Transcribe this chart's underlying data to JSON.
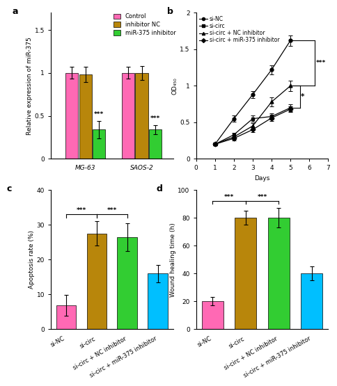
{
  "panel_a": {
    "groups": [
      "MG-63",
      "SAOS-2"
    ],
    "categories": [
      "Control",
      "inhibitor NC",
      "miR-375 inhibitor"
    ],
    "values": [
      [
        1.0,
        0.98,
        0.34
      ],
      [
        1.0,
        1.0,
        0.34
      ]
    ],
    "errors": [
      [
        0.07,
        0.09,
        0.1
      ],
      [
        0.07,
        0.08,
        0.05
      ]
    ],
    "colors": [
      "#FF69B4",
      "#B8860B",
      "#32CD32"
    ],
    "ylabel": "Relative expression of miR-375",
    "ylim": [
      0,
      1.7
    ],
    "yticks": [
      0.0,
      0.5,
      1.0,
      1.5
    ],
    "sig_bars": [
      {
        "group": 0,
        "bar": 2,
        "label": "***"
      },
      {
        "group": 1,
        "bar": 2,
        "label": "***"
      }
    ]
  },
  "panel_b": {
    "days": [
      1,
      2,
      3,
      4,
      5
    ],
    "series": [
      {
        "label": "si-NC",
        "values": [
          0.2,
          0.55,
          0.88,
          1.22,
          1.62
        ],
        "errors": [
          0.02,
          0.04,
          0.05,
          0.06,
          0.07
        ],
        "marker": "o"
      },
      {
        "label": "si-circ",
        "values": [
          0.2,
          0.33,
          0.55,
          0.58,
          0.7
        ],
        "errors": [
          0.02,
          0.03,
          0.04,
          0.04,
          0.05
        ],
        "marker": "s"
      },
      {
        "label": "si-circ + NC inhibitor",
        "values": [
          0.2,
          0.3,
          0.45,
          0.78,
          1.0
        ],
        "errors": [
          0.02,
          0.03,
          0.04,
          0.06,
          0.07
        ],
        "marker": "^"
      },
      {
        "label": "si-circ + miR-375 inhibitor",
        "values": [
          0.2,
          0.28,
          0.4,
          0.56,
          0.68
        ],
        "errors": [
          0.02,
          0.03,
          0.03,
          0.04,
          0.04
        ],
        "marker": "D"
      }
    ],
    "color": "black",
    "xlabel": "Days",
    "ylabel": "OD₄₅₀",
    "xlim": [
      0,
      7
    ],
    "ylim": [
      0.0,
      2.0
    ],
    "yticks": [
      0.0,
      0.5,
      1.0,
      1.5,
      2.0
    ]
  },
  "panel_c": {
    "categories": [
      "si-NC",
      "si-circ",
      "si-circ + NC inhibitor",
      "si-circ + miR-375 inhibitor"
    ],
    "values": [
      6.8,
      27.5,
      26.5,
      16.0
    ],
    "errors": [
      3.0,
      3.5,
      4.0,
      2.5
    ],
    "colors": [
      "#FF69B4",
      "#B8860B",
      "#32CD32",
      "#00BFFF"
    ],
    "ylabel": "Apoptosis rate (%)",
    "ylim": [
      0,
      40
    ],
    "yticks": [
      0,
      10,
      20,
      30,
      40
    ],
    "sig_bars": [
      {
        "x1": 0,
        "x2": 1,
        "y": 33,
        "label": "***"
      },
      {
        "x1": 1,
        "x2": 2,
        "y": 33,
        "label": "***"
      }
    ]
  },
  "panel_d": {
    "categories": [
      "si-NC",
      "si-circ",
      "si-circ + NC inhibitor",
      "si-circ + miR-375 inhibitor"
    ],
    "values": [
      20.0,
      80.0,
      80.0,
      40.0
    ],
    "errors": [
      3.0,
      5.0,
      7.0,
      5.0
    ],
    "colors": [
      "#FF69B4",
      "#B8860B",
      "#32CD32",
      "#00BFFF"
    ],
    "ylabel": "Wound healing time (h)",
    "ylim": [
      0,
      100
    ],
    "yticks": [
      0,
      20,
      40,
      60,
      80,
      100
    ],
    "sig_bars": [
      {
        "x1": 0,
        "x2": 1,
        "y": 92,
        "label": "***"
      },
      {
        "x1": 1,
        "x2": 2,
        "y": 92,
        "label": "***"
      }
    ]
  },
  "background_color": "#ffffff",
  "font_size": 6.5,
  "label_font_size": 9
}
